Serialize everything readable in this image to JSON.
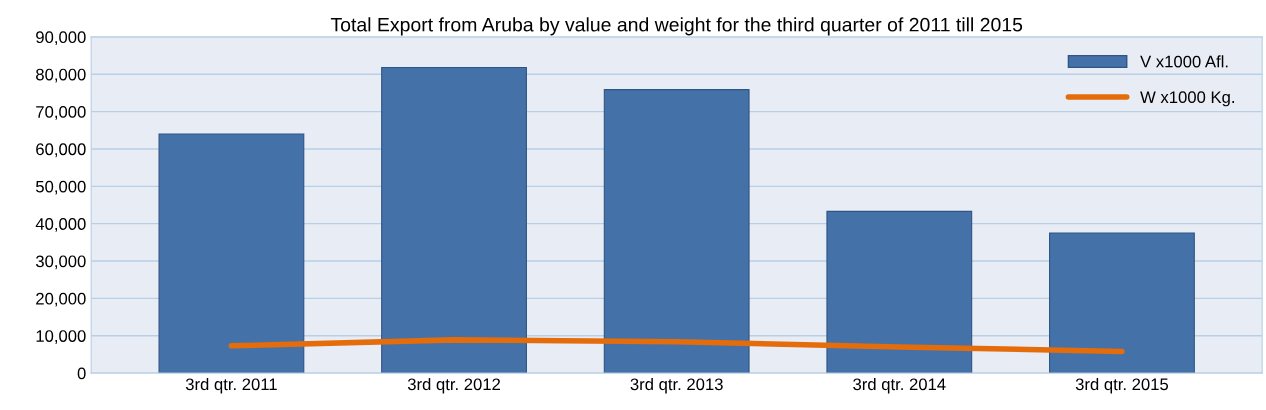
{
  "chart_data": {
    "type": "bar",
    "title": "Total Export from Aruba by value and weight for the third quarter of 2011 till 2015",
    "categories": [
      "3rd qtr. 2011",
      "3rd qtr. 2012",
      "3rd qtr. 2013",
      "3rd qtr. 2014",
      "3rd qtr. 2015"
    ],
    "series": [
      {
        "name": "V x1000 Afl.",
        "color": "#4472a8",
        "values": [
          64000,
          81800,
          75900,
          43300,
          37500
        ]
      },
      {
        "name": "W x1000 Kg.",
        "type": "line",
        "color": "#e46c0a",
        "values": [
          7300,
          8900,
          8400,
          7000,
          5800
        ]
      }
    ],
    "ylim": [
      0,
      90000
    ],
    "yticks": [
      {
        "value": 0,
        "label": "0"
      },
      {
        "value": 10000,
        "label": "10,000"
      },
      {
        "value": 20000,
        "label": "20,000"
      },
      {
        "value": 30000,
        "label": "30,000"
      },
      {
        "value": 40000,
        "label": "40,000"
      },
      {
        "value": 50000,
        "label": "50,000"
      },
      {
        "value": 60000,
        "label": "60,000"
      },
      {
        "value": 70000,
        "label": "70,000"
      },
      {
        "value": 80000,
        "label": "80,000"
      },
      {
        "value": 90000,
        "label": "90,000"
      }
    ],
    "grid": "y",
    "legend": "top right",
    "marker": "none",
    "line_style": "solid"
  }
}
